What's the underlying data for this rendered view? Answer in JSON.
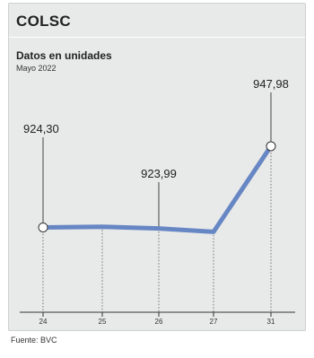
{
  "header": {
    "title": "COLSC",
    "subtitle": "Datos en unidades",
    "date": "Mayo 2022"
  },
  "footer": {
    "source": "Fuente: BVC"
  },
  "colors": {
    "line": "#6787c4",
    "background": "#e8e9e9"
  },
  "chart_data": {
    "type": "line",
    "title": "COLSC",
    "subtitle": "Datos en unidades",
    "x": [
      "24",
      "25",
      "26",
      "27",
      "31"
    ],
    "series": [
      {
        "values": [
          924.3,
          924.5,
          923.99,
          923.0,
          947.98
        ]
      }
    ],
    "data_labels": [
      {
        "x": "24",
        "text": "924,30"
      },
      {
        "x": "26",
        "text": "923,99"
      },
      {
        "x": "31",
        "text": "947,98"
      }
    ],
    "markers": [
      "24",
      "31"
    ],
    "ylim": [
      915,
      960
    ],
    "grid": false,
    "x_gridlines": "dotted"
  }
}
